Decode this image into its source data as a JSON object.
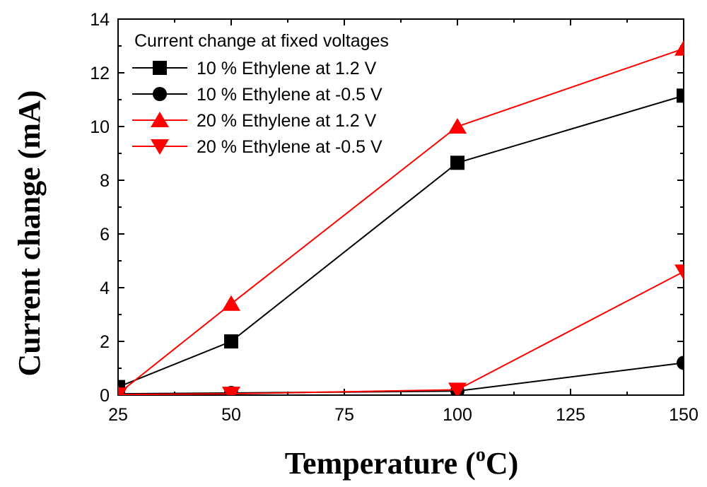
{
  "chart_data": {
    "type": "line",
    "title": "",
    "xlabel": "Temperature (",
    "xlabel_superscript": "o",
    "xlabel_suffix": "C)",
    "ylabel": "Current change (mA)",
    "xlim": [
      25,
      150
    ],
    "ylim": [
      0,
      14
    ],
    "x_ticks": [
      25,
      50,
      75,
      100,
      125,
      150
    ],
    "y_ticks": [
      0,
      2,
      4,
      6,
      8,
      10,
      12,
      14
    ],
    "grid": false,
    "legend_title": "Current change at fixed voltages",
    "legend_position": "top-left",
    "series": [
      {
        "name": "10 % Ethylene at 1.2 V",
        "marker": "square",
        "color": "#000000",
        "x": [
          25,
          50,
          100,
          150
        ],
        "y": [
          0.3,
          2.0,
          8.65,
          11.15
        ]
      },
      {
        "name": "10 % Ethylene at -0.5 V",
        "marker": "circle",
        "color": "#000000",
        "x": [
          25,
          50,
          100,
          150
        ],
        "y": [
          0.05,
          0.08,
          0.15,
          1.2
        ]
      },
      {
        "name": "20 % Ethylene at 1.2 V",
        "marker": "triangle-up",
        "color": "#ff0000",
        "x": [
          25,
          50,
          100,
          150
        ],
        "y": [
          0.05,
          3.4,
          10.0,
          12.9
        ]
      },
      {
        "name": "20 % Ethylene at -0.5 V",
        "marker": "triangle-down",
        "color": "#ff0000",
        "x": [
          25,
          50,
          100,
          150
        ],
        "y": [
          0.02,
          0.05,
          0.2,
          4.6
        ]
      }
    ]
  }
}
